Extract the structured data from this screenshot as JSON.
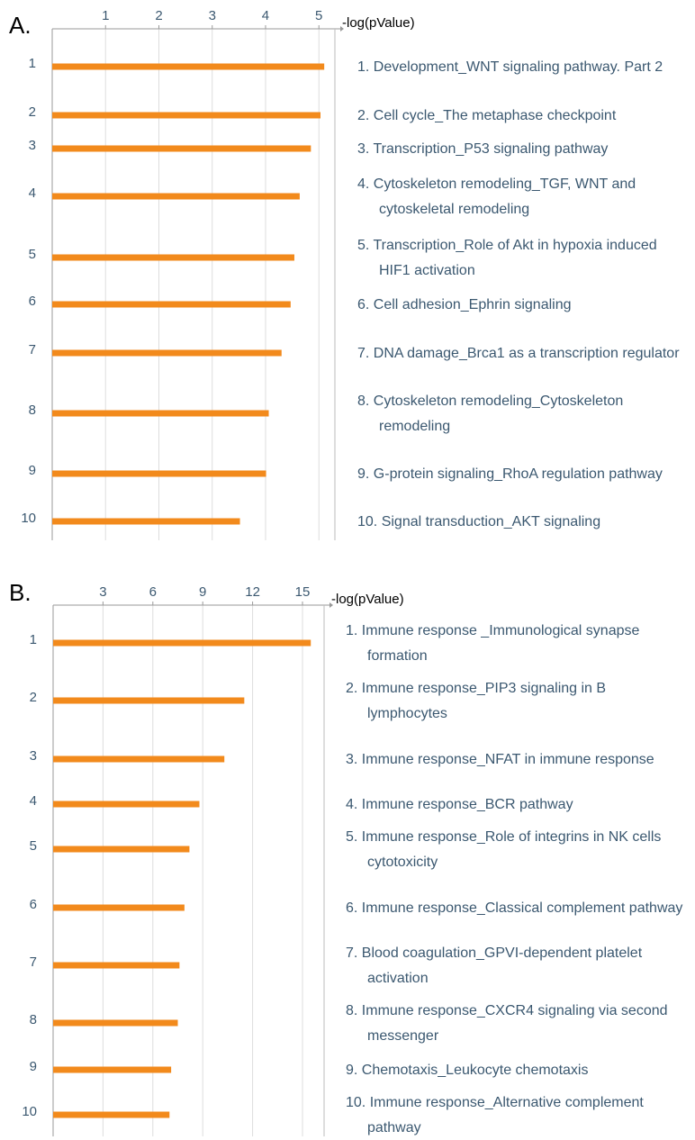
{
  "chart_data": [
    {
      "type": "bar",
      "orientation": "horizontal",
      "panel_label": "A.",
      "xlabel": "-log(pValue)",
      "categories": [
        "1",
        "2",
        "3",
        "4",
        "5",
        "6",
        "7",
        "8",
        "9",
        "10"
      ],
      "values": [
        5.1,
        5.03,
        4.85,
        4.64,
        4.54,
        4.47,
        4.3,
        4.06,
        4.01,
        3.52
      ],
      "pathways": [
        "1. Development_WNT signaling pathway. Part 2",
        "2. Cell cycle_The metaphase checkpoint",
        "3. Transcription_P53 signaling pathway",
        "4. Cytoskeleton remodeling_TGF, WNT and cytoskeletal remodeling",
        "5. Transcription_Role of Akt in hypoxia induced HIF1 activation",
        "6. Cell adhesion_Ephrin signaling",
        "7. DNA damage_Brca1 as a transcription regulator",
        "8. Cytoskeleton remodeling_Cytoskeleton remodeling",
        "9. G-protein signaling_RhoA regulation pathway",
        "10. Signal transduction_AKT signaling"
      ],
      "color": "#f28a1c",
      "xlim": [
        0,
        5.3
      ],
      "xticks": [
        1,
        2,
        3,
        4,
        5
      ],
      "grid": true
    },
    {
      "type": "bar",
      "orientation": "horizontal",
      "panel_label": "B.",
      "xlabel": "-log(pValue)",
      "categories": [
        "1",
        "2",
        "3",
        "4",
        "5",
        "6",
        "7",
        "8",
        "9",
        "10"
      ],
      "values": [
        15.5,
        11.5,
        10.3,
        8.8,
        8.2,
        7.9,
        7.6,
        7.5,
        7.1,
        7.0
      ],
      "pathways": [
        "1. Immune response _Immunological synapse formation",
        "2. Immune response_PIP3 signaling in B lymphocytes",
        "3. Immune response_NFAT in immune response",
        "4. Immune response_BCR pathway",
        "5. Immune response_Role of integrins in NK cells cytotoxicity",
        "6. Immune response_Classical complement pathway",
        "7. Blood coagulation_GPVI-dependent platelet activation",
        "8. Immune response_CXCR4 signaling via second messenger",
        "9. Chemotaxis_Leukocyte chemotaxis",
        "10. Immune response_Alternative complement pathway"
      ],
      "color": "#f28a1c",
      "xlim": [
        0,
        16.3
      ],
      "xticks": [
        3,
        6,
        9,
        12,
        15
      ],
      "grid": true
    }
  ]
}
